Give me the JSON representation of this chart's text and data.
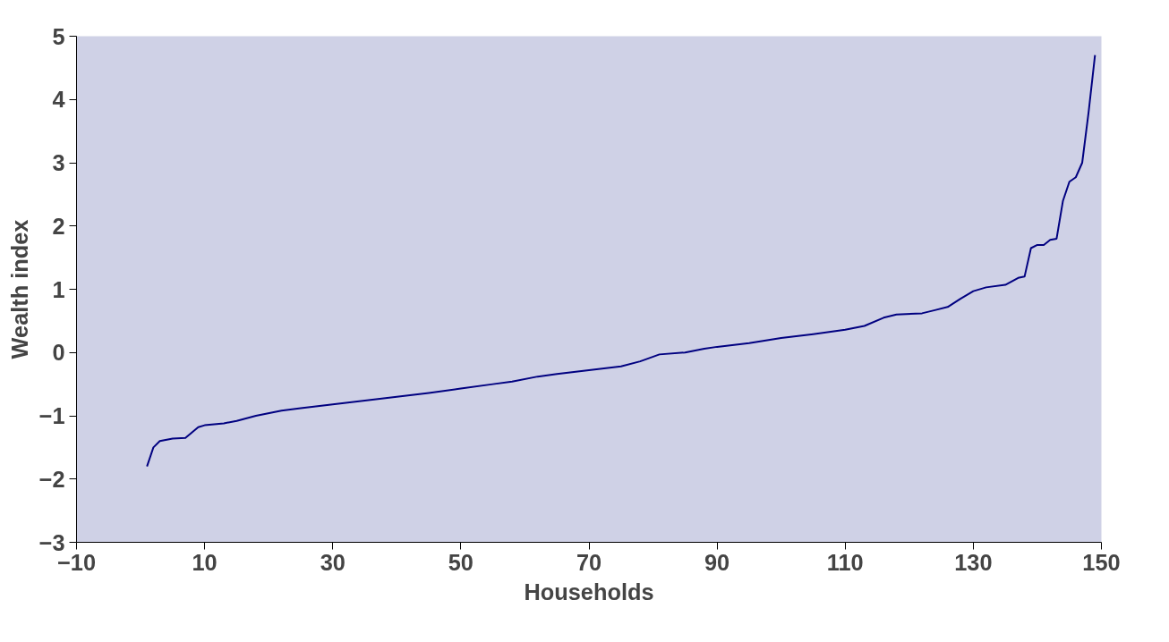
{
  "chart_data": {
    "type": "line",
    "xlabel": "Households",
    "ylabel": "Wealth index",
    "x": [
      1,
      2,
      3,
      5,
      7,
      9,
      10,
      13,
      15,
      18,
      22,
      25,
      30,
      35,
      40,
      45,
      50,
      55,
      58,
      62,
      65,
      70,
      75,
      78,
      81,
      85,
      88,
      90,
      95,
      100,
      105,
      110,
      113,
      116,
      118,
      122,
      124,
      126,
      128,
      130,
      132,
      135,
      137,
      138,
      139,
      140,
      141,
      142,
      143,
      144,
      145,
      146,
      147,
      148,
      149
    ],
    "series": [
      {
        "color": "#000080",
        "values": [
          -1.8,
          -1.5,
          -1.4,
          -1.36,
          -1.35,
          -1.18,
          -1.15,
          -1.12,
          -1.08,
          -1.0,
          -0.92,
          -0.88,
          -0.82,
          -0.76,
          -0.7,
          -0.64,
          -0.57,
          -0.5,
          -0.46,
          -0.38,
          -0.34,
          -0.28,
          -0.22,
          -0.14,
          -0.03,
          0.0,
          0.06,
          0.09,
          0.15,
          0.23,
          0.29,
          0.36,
          0.42,
          0.55,
          0.6,
          0.62,
          0.67,
          0.72,
          0.85,
          0.97,
          1.03,
          1.07,
          1.18,
          1.2,
          1.65,
          1.7,
          1.7,
          1.78,
          1.8,
          2.4,
          2.7,
          2.77,
          3.0,
          3.8,
          4.7
        ]
      }
    ],
    "xlim": [
      -10,
      150
    ],
    "ylim": [
      -3,
      5
    ],
    "xticks": [
      -10,
      10,
      30,
      50,
      70,
      90,
      110,
      130,
      150
    ],
    "yticks": [
      -3,
      -2,
      -1,
      0,
      1,
      2,
      3,
      4,
      5
    ],
    "grid": false,
    "marker": "none",
    "line_style": "solid"
  }
}
